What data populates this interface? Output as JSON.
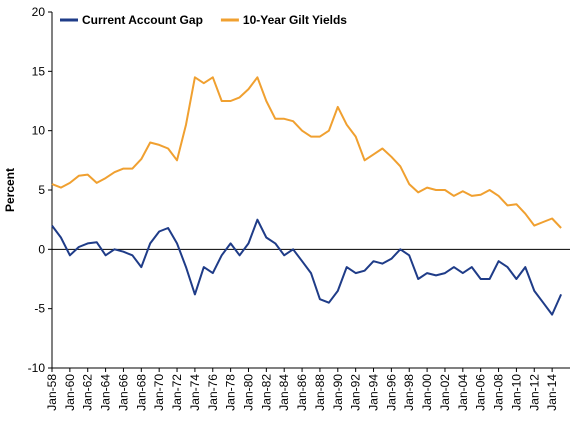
{
  "chart_data": {
    "type": "line",
    "ylabel": "Percent",
    "x": [
      1958,
      1959,
      1960,
      1961,
      1962,
      1963,
      1964,
      1965,
      1966,
      1967,
      1968,
      1969,
      1970,
      1971,
      1972,
      1973,
      1974,
      1975,
      1976,
      1977,
      1978,
      1979,
      1980,
      1981,
      1982,
      1983,
      1984,
      1985,
      1986,
      1987,
      1988,
      1989,
      1990,
      1991,
      1992,
      1993,
      1994,
      1995,
      1996,
      1997,
      1998,
      1999,
      2000,
      2001,
      2002,
      2003,
      2004,
      2005,
      2006,
      2007,
      2008,
      2009,
      2010,
      2011,
      2012,
      2013,
      2014,
      2015
    ],
    "series": [
      {
        "name": "Current Account Gap",
        "color": "#1f3c88",
        "values": [
          2.0,
          1.0,
          -0.5,
          0.2,
          0.5,
          0.6,
          -0.5,
          0.0,
          -0.2,
          -0.5,
          -1.5,
          0.5,
          1.5,
          1.8,
          0.5,
          -1.5,
          -3.8,
          -1.5,
          -2.0,
          -0.5,
          0.5,
          -0.5,
          0.5,
          2.5,
          1.0,
          0.5,
          -0.5,
          0.0,
          -1.0,
          -2.0,
          -4.2,
          -4.5,
          -3.5,
          -1.5,
          -2.0,
          -1.8,
          -1.0,
          -1.2,
          -0.8,
          0.0,
          -0.5,
          -2.5,
          -2.0,
          -2.2,
          -2.0,
          -1.5,
          -2.0,
          -1.5,
          -2.5,
          -2.5,
          -1.0,
          -1.5,
          -2.5,
          -1.5,
          -3.5,
          -4.5,
          -5.5,
          -3.8
        ]
      },
      {
        "name": "10-Year Gilt Yields",
        "color": "#f0a030",
        "values": [
          5.5,
          5.2,
          5.6,
          6.2,
          6.3,
          5.6,
          6.0,
          6.5,
          6.8,
          6.8,
          7.6,
          9.0,
          8.8,
          8.5,
          7.5,
          10.5,
          14.5,
          14.0,
          14.5,
          12.5,
          12.5,
          12.8,
          13.5,
          14.5,
          12.5,
          11.0,
          11.0,
          10.8,
          10.0,
          9.5,
          9.5,
          10.0,
          12.0,
          10.5,
          9.5,
          7.5,
          8.0,
          8.5,
          7.8,
          7.0,
          5.5,
          4.8,
          5.2,
          5.0,
          5.0,
          4.5,
          4.9,
          4.5,
          4.6,
          5.0,
          4.5,
          3.7,
          3.8,
          3.0,
          2.0,
          2.3,
          2.6,
          1.8
        ]
      }
    ],
    "xlim": [
      1958,
      2016
    ],
    "xticks": [
      {
        "value": 1958,
        "label": "Jan-58"
      },
      {
        "value": 1960,
        "label": "Jan-60"
      },
      {
        "value": 1962,
        "label": "Jan-62"
      },
      {
        "value": 1964,
        "label": "Jan-64"
      },
      {
        "value": 1966,
        "label": "Jan-66"
      },
      {
        "value": 1968,
        "label": "Jan-68"
      },
      {
        "value": 1970,
        "label": "Jan-70"
      },
      {
        "value": 1972,
        "label": "Jan-72"
      },
      {
        "value": 1974,
        "label": "Jan-74"
      },
      {
        "value": 1976,
        "label": "Jan-76"
      },
      {
        "value": 1978,
        "label": "Jan-78"
      },
      {
        "value": 1980,
        "label": "Jan-80"
      },
      {
        "value": 1982,
        "label": "Jan-82"
      },
      {
        "value": 1984,
        "label": "Jan-84"
      },
      {
        "value": 1986,
        "label": "Jan-86"
      },
      {
        "value": 1988,
        "label": "Jan-88"
      },
      {
        "value": 1990,
        "label": "Jan-90"
      },
      {
        "value": 1992,
        "label": "Jan-92"
      },
      {
        "value": 1994,
        "label": "Jan-94"
      },
      {
        "value": 1996,
        "label": "Jan-96"
      },
      {
        "value": 1998,
        "label": "Jan-98"
      },
      {
        "value": 2000,
        "label": "Jan-00"
      },
      {
        "value": 2002,
        "label": "Jan-02"
      },
      {
        "value": 2004,
        "label": "Jan-04"
      },
      {
        "value": 2006,
        "label": "Jan-06"
      },
      {
        "value": 2008,
        "label": "Jan-08"
      },
      {
        "value": 2010,
        "label": "Jan-10"
      },
      {
        "value": 2012,
        "label": "Jan-12"
      },
      {
        "value": 2014,
        "label": "Jan-14"
      }
    ],
    "ylim": [
      -10,
      20
    ],
    "yticks": [
      -10,
      -5,
      0,
      5,
      10,
      15,
      20
    ],
    "legend": "top-left"
  }
}
